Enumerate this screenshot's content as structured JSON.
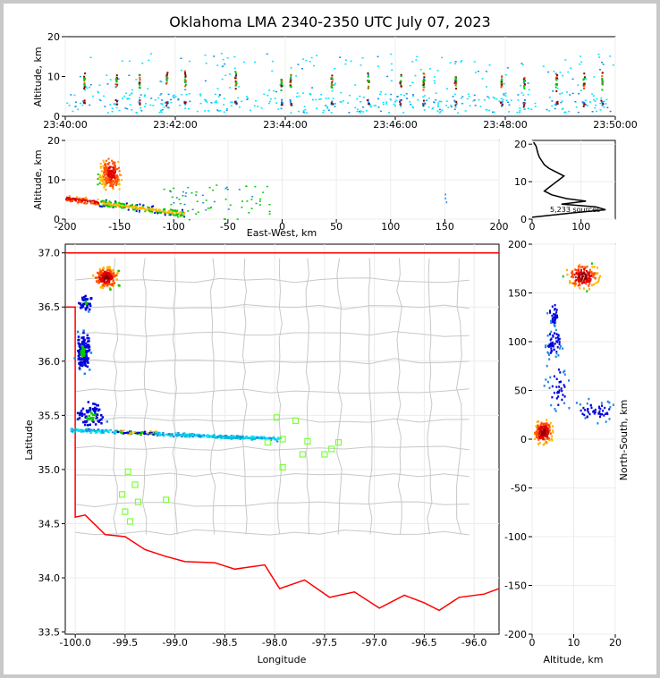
{
  "title": "Oklahoma LMA 2340-2350 UTC July 07, 2023",
  "colors": {
    "border": "#ff0000",
    "counties": "#c8c8c8",
    "stations": "#7dff3c",
    "background": "#ffffff"
  },
  "chart_data": [
    {
      "type": "scatter",
      "panel": "time-height",
      "ylabel": "Altitude, km",
      "xticks": [
        "23:40:00",
        "23:42:00",
        "23:44:00",
        "23:46:00",
        "23:48:00",
        "23:50:00"
      ],
      "xlim": [
        "23:40:00",
        "23:50:00"
      ],
      "yticks": [
        "0",
        "10",
        "20"
      ],
      "ylim": [
        0,
        20
      ],
      "flash_times": [
        "23:40:20",
        "23:40:55",
        "23:41:20",
        "23:41:50",
        "23:42:10",
        "23:43:05",
        "23:43:55",
        "23:44:05",
        "23:44:50",
        "23:45:30",
        "23:46:05",
        "23:46:30",
        "23:47:05",
        "23:47:55",
        "23:48:20",
        "23:48:55",
        "23:49:25",
        "23:49:45"
      ]
    },
    {
      "type": "scatter",
      "panel": "east-west-altitude",
      "xlabel": "East-West, km",
      "ylabel": "Altitude, km",
      "xticks": [
        "-200",
        "-150",
        "-100",
        "-50",
        "0",
        "50",
        "100",
        "150",
        "200"
      ],
      "xlim": [
        -200,
        200
      ],
      "yticks": [
        "0",
        "10",
        "20"
      ],
      "ylim": [
        0,
        20
      ]
    },
    {
      "type": "line",
      "panel": "altitude-histogram",
      "annotation": "5,233 sources",
      "xticks": [
        "0",
        "100"
      ],
      "xlim": [
        0,
        170
      ],
      "yticks": [
        "0",
        "10",
        "20"
      ],
      "ylim": [
        0,
        21
      ],
      "profile": [
        [
          0,
          0.5
        ],
        [
          70,
          1.5
        ],
        [
          150,
          2.5
        ],
        [
          130,
          3.3
        ],
        [
          60,
          4.0
        ],
        [
          110,
          4.8
        ],
        [
          70,
          5.5
        ],
        [
          40,
          6.5
        ],
        [
          25,
          7.5
        ],
        [
          35,
          8.5
        ],
        [
          45,
          9.5
        ],
        [
          55,
          10.5
        ],
        [
          65,
          11.5
        ],
        [
          50,
          12.5
        ],
        [
          35,
          13.5
        ],
        [
          25,
          14.5
        ],
        [
          20,
          15.5
        ],
        [
          15,
          16.5
        ],
        [
          12,
          17.5
        ],
        [
          10,
          18.5
        ],
        [
          8,
          19.5
        ],
        [
          3,
          20.5
        ]
      ]
    },
    {
      "type": "scatter",
      "panel": "plan-view",
      "xlabel": "Longitude",
      "ylabel": "Latitude",
      "xticks": [
        "-100.0",
        "-99.5",
        "-99.0",
        "-98.5",
        "-98.0",
        "-97.5",
        "-97.0",
        "-96.5",
        "-96.0"
      ],
      "xlim": [
        -100.1,
        -95.75
      ],
      "yticks": [
        "33.5",
        "34.0",
        "34.5",
        "35.0",
        "35.5",
        "36.0",
        "36.5",
        "37.0"
      ],
      "ylim": [
        33.48,
        37.08
      ],
      "stations": [
        [
          -99.47,
          34.98
        ],
        [
          -99.4,
          34.86
        ],
        [
          -99.53,
          34.77
        ],
        [
          -99.37,
          34.7
        ],
        [
          -99.09,
          34.72
        ],
        [
          -99.5,
          34.61
        ],
        [
          -99.45,
          34.52
        ],
        [
          -97.98,
          35.48
        ],
        [
          -97.79,
          35.45
        ],
        [
          -98.07,
          35.25
        ],
        [
          -97.92,
          35.28
        ],
        [
          -97.67,
          35.26
        ],
        [
          -97.36,
          35.25
        ],
        [
          -97.43,
          35.19
        ],
        [
          -97.72,
          35.14
        ],
        [
          -97.5,
          35.14
        ],
        [
          -97.92,
          35.02
        ]
      ]
    },
    {
      "type": "scatter",
      "panel": "altitude-north-south",
      "xlabel": "Altitude, km",
      "ylabel": "North-South, km",
      "xticks": [
        "0",
        "10",
        "20"
      ],
      "xlim": [
        0,
        20
      ],
      "yticks": [
        "200",
        "150",
        "100",
        "50",
        "0",
        "-50",
        "-100",
        "-150",
        "-200"
      ],
      "ylim": [
        -200,
        200
      ]
    }
  ]
}
